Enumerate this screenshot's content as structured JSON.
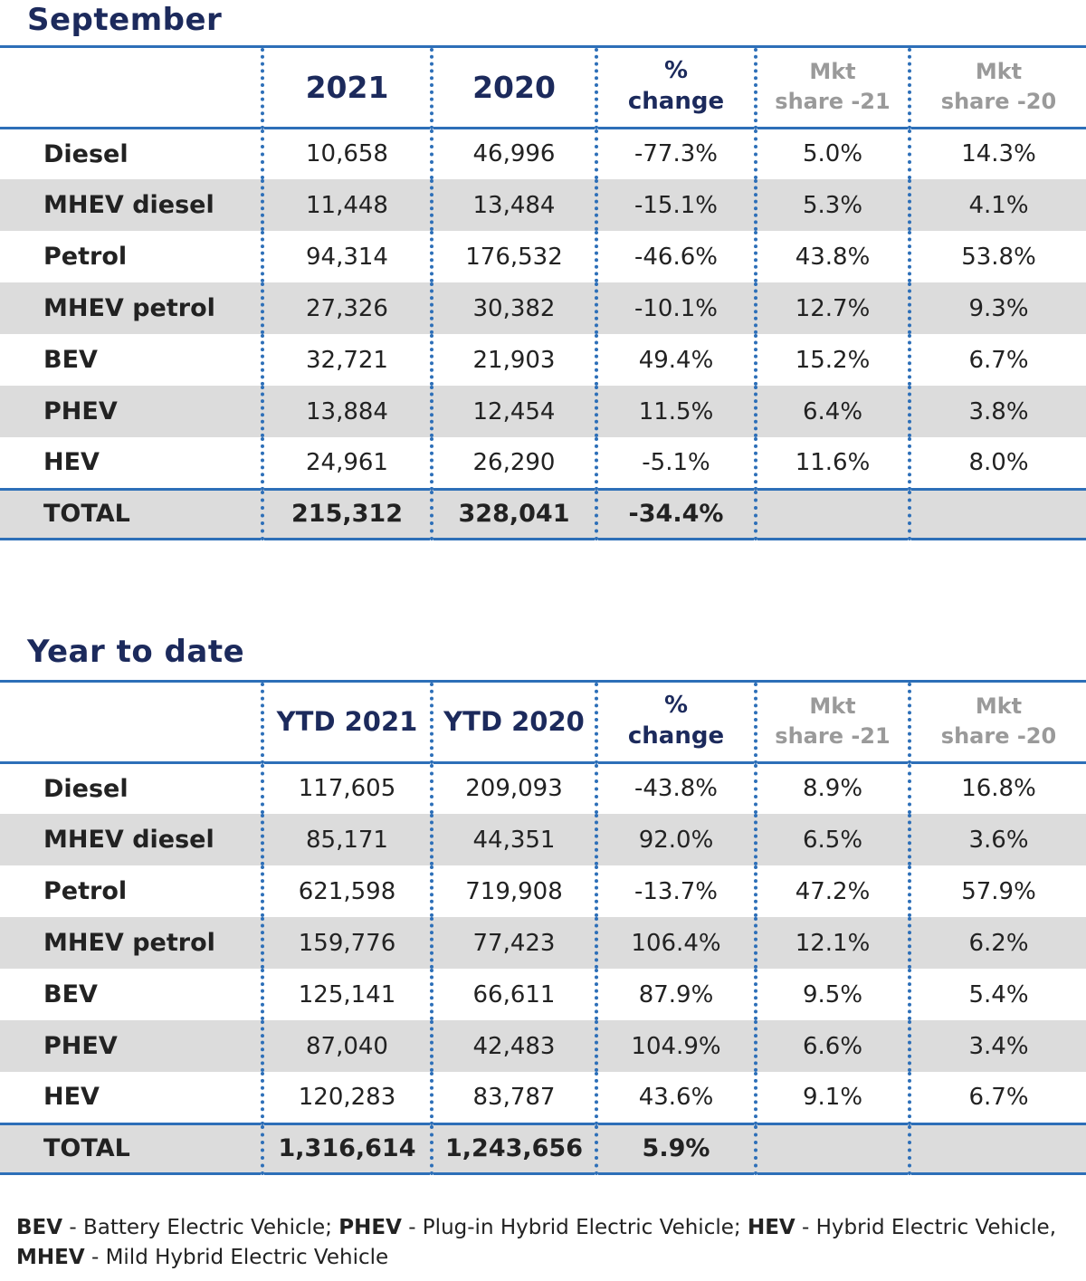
{
  "sections": [
    {
      "title": "September",
      "headers": {
        "col1": "2021",
        "col2": "2020",
        "pct_line1": "%",
        "pct_line2": "change",
        "mkt21_line1": "Mkt",
        "mkt21_line2": "share -21",
        "mkt20_line1": "Mkt",
        "mkt20_line2": "share -20"
      },
      "rows": [
        {
          "label": "Diesel",
          "v2021": "10,658",
          "v2020": "46,996",
          "change": "-77.3%",
          "share21": "5.0%",
          "share20": "14.3%"
        },
        {
          "label": "MHEV diesel",
          "v2021": "11,448",
          "v2020": "13,484",
          "change": "-15.1%",
          "share21": "5.3%",
          "share20": "4.1%"
        },
        {
          "label": "Petrol",
          "v2021": "94,314",
          "v2020": "176,532",
          "change": "-46.6%",
          "share21": "43.8%",
          "share20": "53.8%"
        },
        {
          "label": "MHEV petrol",
          "v2021": "27,326",
          "v2020": "30,382",
          "change": "-10.1%",
          "share21": "12.7%",
          "share20": "9.3%"
        },
        {
          "label": "BEV",
          "v2021": "32,721",
          "v2020": "21,903",
          "change": "49.4%",
          "share21": "15.2%",
          "share20": "6.7%"
        },
        {
          "label": "PHEV",
          "v2021": "13,884",
          "v2020": "12,454",
          "change": "11.5%",
          "share21": "6.4%",
          "share20": "3.8%"
        },
        {
          "label": "HEV",
          "v2021": "24,961",
          "v2020": "26,290",
          "change": "-5.1%",
          "share21": "11.6%",
          "share20": "8.0%"
        }
      ],
      "total": {
        "label": "TOTAL",
        "v2021": "215,312",
        "v2020": "328,041",
        "change": "-34.4%"
      }
    },
    {
      "title": "Year to date",
      "headers": {
        "col1": "YTD 2021",
        "col2": "YTD 2020",
        "pct_line1": "%",
        "pct_line2": "change",
        "mkt21_line1": "Mkt",
        "mkt21_line2": "share -21",
        "mkt20_line1": "Mkt",
        "mkt20_line2": "share -20"
      },
      "rows": [
        {
          "label": "Diesel",
          "v2021": "117,605",
          "v2020": "209,093",
          "change": "-43.8%",
          "share21": "8.9%",
          "share20": "16.8%"
        },
        {
          "label": "MHEV diesel",
          "v2021": "85,171",
          "v2020": "44,351",
          "change": "92.0%",
          "share21": "6.5%",
          "share20": "3.6%"
        },
        {
          "label": "Petrol",
          "v2021": "621,598",
          "v2020": "719,908",
          "change": "-13.7%",
          "share21": "47.2%",
          "share20": "57.9%"
        },
        {
          "label": "MHEV petrol",
          "v2021": "159,776",
          "v2020": "77,423",
          "change": "106.4%",
          "share21": "12.1%",
          "share20": "6.2%"
        },
        {
          "label": "BEV",
          "v2021": "125,141",
          "v2020": "66,611",
          "change": "87.9%",
          "share21": "9.5%",
          "share20": "5.4%"
        },
        {
          "label": "PHEV",
          "v2021": "87,040",
          "v2020": "42,483",
          "change": "104.9%",
          "share21": "6.6%",
          "share20": "3.4%"
        },
        {
          "label": "HEV",
          "v2021": "120,283",
          "v2020": "83,787",
          "change": "43.6%",
          "share21": "9.1%",
          "share20": "6.7%"
        }
      ],
      "total": {
        "label": "TOTAL",
        "v2021": "1,316,614",
        "v2020": "1,243,656",
        "change": "5.9%"
      }
    }
  ],
  "footnote": {
    "bev_abbr": "BEV",
    "bev_text": " - Battery Electric Vehicle; ",
    "phev_abbr": "PHEV",
    "phev_text": " - Plug-in Hybrid Electric Vehicle; ",
    "hev_abbr": "HEV",
    "hev_text": " - Hybrid Electric Vehicle,",
    "mhev_abbr": "MHEV",
    "mhev_text": " - Mild Hybrid Electric Vehicle"
  },
  "colors": {
    "title": "#1c2a5c",
    "rule": "#2d6fb8",
    "shade": "#dcdcdc",
    "muted_header": "#9a9a9a"
  }
}
